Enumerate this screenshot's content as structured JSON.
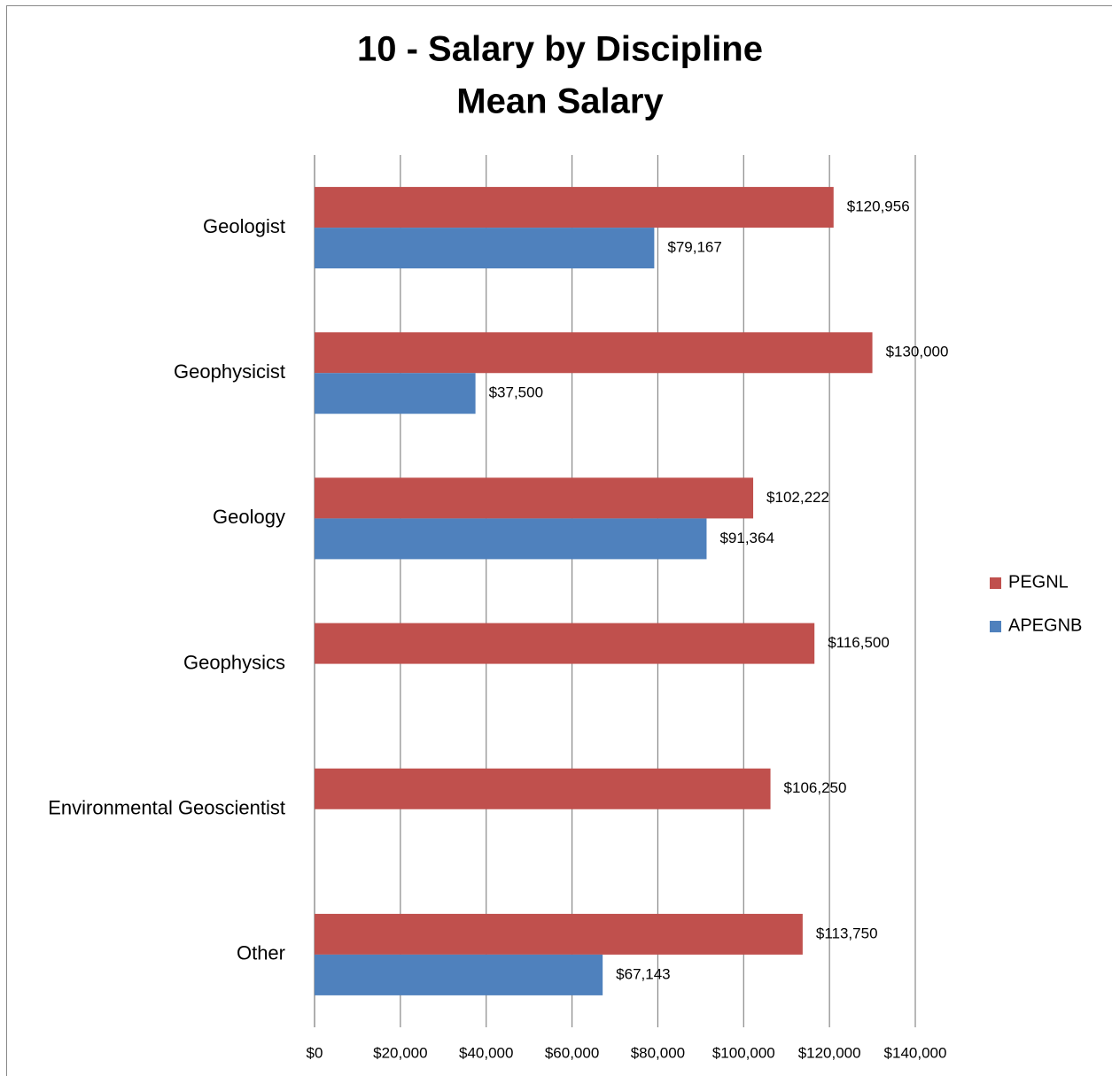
{
  "chart_data": {
    "type": "hbar",
    "title": "10 - Salary by Discipline",
    "subtitle": "Mean Salary",
    "categories": [
      "Geologist",
      "Geophysicist",
      "Geology",
      "Geophysics",
      "Environmental Geoscientist",
      "Other"
    ],
    "series": [
      {
        "name": "PEGNL",
        "color": "#c0504d",
        "values": [
          120956,
          130000,
          102222,
          116500,
          106250,
          113750
        ],
        "value_labels": [
          "$120,956",
          "$130,000",
          "$102,222",
          "$116,500",
          "$106,250",
          "$113,750"
        ]
      },
      {
        "name": "APEGNB",
        "color": "#4f81bd",
        "values": [
          79167,
          37500,
          91364,
          null,
          null,
          67143
        ],
        "value_labels": [
          "$79,167",
          "$37,500",
          "$91,364",
          null,
          null,
          "$67,143"
        ]
      }
    ],
    "xlim": [
      0,
      140000
    ],
    "xticks": [
      {
        "value": 0,
        "label": "$0"
      },
      {
        "value": 20000,
        "label": "$20,000"
      },
      {
        "value": 40000,
        "label": "$40,000"
      },
      {
        "value": 60000,
        "label": "$60,000"
      },
      {
        "value": 80000,
        "label": "$80,000"
      },
      {
        "value": 100000,
        "label": "$100,000"
      },
      {
        "value": 120000,
        "label": "$120,000"
      },
      {
        "value": 140000,
        "label": "$140,000"
      }
    ],
    "grid": true,
    "legend": "right"
  }
}
